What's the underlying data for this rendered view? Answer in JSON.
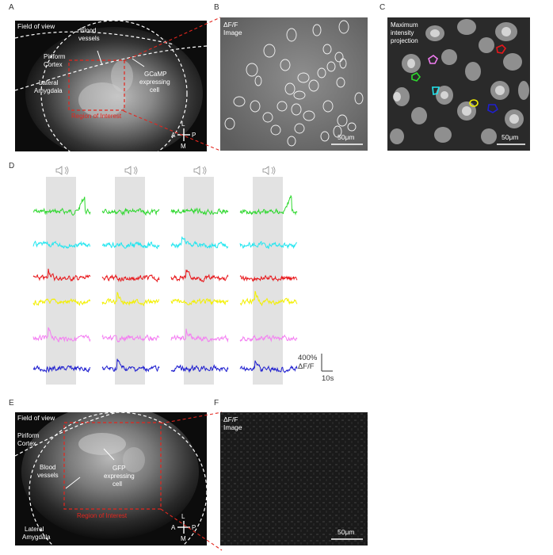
{
  "panels": {
    "A": {
      "letter": "A",
      "field_of_view": "Field of view",
      "blood_vessels": [
        "Blood",
        "vessels"
      ],
      "piriform": [
        "Piriform",
        "Cortex"
      ],
      "lateral_amygdala": [
        "Lateral",
        "Amygdala"
      ],
      "gcamp_cell": [
        "GCaMP",
        "expressing",
        "cell"
      ],
      "roi": "Region of Interest",
      "compass": {
        "L": "L",
        "A": "A",
        "P": "P",
        "M": "M"
      }
    },
    "B": {
      "letter": "B",
      "title": [
        "ΔF/F",
        "Image"
      ],
      "scalebar": "50μm"
    },
    "C": {
      "letter": "C",
      "title": [
        "Maximum",
        "intensity",
        "projection"
      ],
      "scalebar": "50μm"
    },
    "D": {
      "letter": "D",
      "scale_y": [
        "400%",
        "ΔF/F"
      ],
      "scale_x": "10s",
      "trial_count": 4,
      "trace_colors": [
        "#2fd82f",
        "#22e6f0",
        "#e8161a",
        "#f3f000",
        "#f47ef2",
        "#1f1fcf"
      ],
      "stimulus_icon": "speaker-icon"
    },
    "E": {
      "letter": "E",
      "field_of_view": "Field of view",
      "piriform": [
        "Piriform",
        "Cortex"
      ],
      "blood_vessels": [
        "Blood",
        "vessels"
      ],
      "gfp_cell": [
        "GFP",
        "expressing",
        "cell"
      ],
      "lateral_amygdala": [
        "Lateral",
        "Amygdala"
      ],
      "roi": "Region of Interest",
      "compass": {
        "L": "L",
        "A": "A",
        "P": "P",
        "M": "M"
      }
    },
    "F": {
      "letter": "F",
      "title": [
        "ΔF/F",
        "Image"
      ],
      "scalebar": "50μm"
    }
  },
  "roi_colors": {
    "pink": "#f07cf0",
    "red": "#e8161a",
    "green": "#2fd82f",
    "cyan": "#22e6f0",
    "yellow": "#f3f000",
    "blue": "#1f1fcf"
  }
}
